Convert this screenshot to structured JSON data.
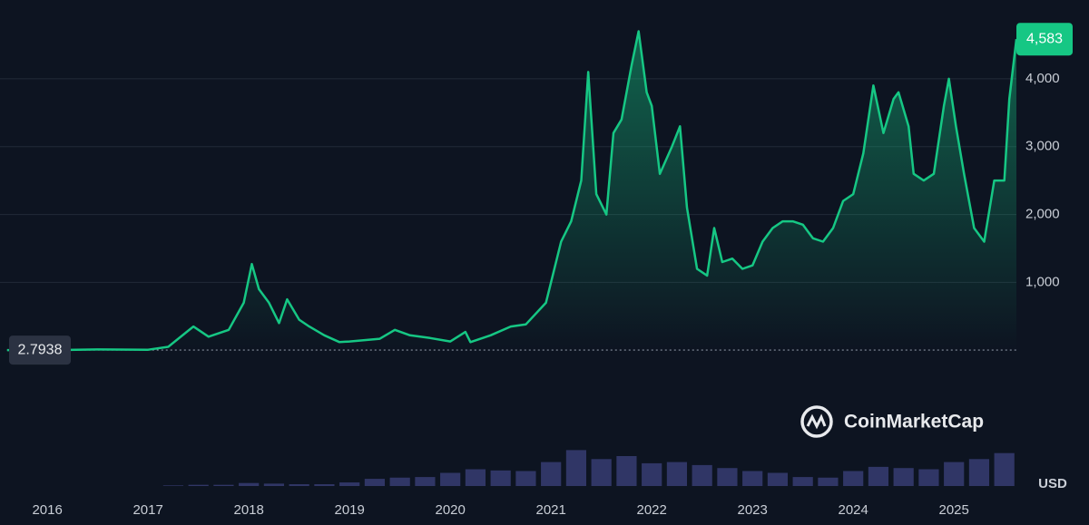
{
  "chart_data": {
    "type": "line",
    "watermark": "CoinMarketCap",
    "currency": "USD",
    "color": "#16c784",
    "x": [
      2015.6,
      2016.0,
      2016.5,
      2017.0,
      2017.2,
      2017.45,
      2017.6,
      2017.8,
      2017.95,
      2018.03,
      2018.1,
      2018.2,
      2018.3,
      2018.38,
      2018.5,
      2018.6,
      2018.75,
      2018.9,
      2019.0,
      2019.3,
      2019.45,
      2019.6,
      2019.8,
      2020.0,
      2020.15,
      2020.2,
      2020.4,
      2020.6,
      2020.75,
      2020.95,
      2021.1,
      2021.2,
      2021.3,
      2021.37,
      2021.45,
      2021.55,
      2021.62,
      2021.7,
      2021.8,
      2021.87,
      2021.95,
      2022.0,
      2022.08,
      2022.2,
      2022.28,
      2022.35,
      2022.45,
      2022.55,
      2022.62,
      2022.7,
      2022.8,
      2022.9,
      2023.0,
      2023.1,
      2023.2,
      2023.3,
      2023.4,
      2023.5,
      2023.6,
      2023.7,
      2023.8,
      2023.9,
      2024.0,
      2024.1,
      2024.2,
      2024.3,
      2024.4,
      2024.45,
      2024.55,
      2024.6,
      2024.7,
      2024.8,
      2024.9,
      2024.95,
      2025.02,
      2025.1,
      2025.2,
      2025.3,
      2025.4,
      2025.5,
      2025.55,
      2025.62
    ],
    "values": [
      2.7938,
      1,
      12,
      8,
      50,
      350,
      200,
      300,
      700,
      1270,
      900,
      700,
      400,
      750,
      450,
      350,
      220,
      120,
      130,
      170,
      300,
      220,
      180,
      130,
      270,
      120,
      220,
      350,
      380,
      700,
      1600,
      1900,
      2500,
      4100,
      2300,
      2000,
      3200,
      3400,
      4200,
      4700,
      3800,
      3600,
      2600,
      3000,
      3300,
      2100,
      1200,
      1100,
      1800,
      1300,
      1350,
      1200,
      1250,
      1600,
      1800,
      1900,
      1900,
      1850,
      1650,
      1600,
      1800,
      2200,
      2300,
      2900,
      3900,
      3200,
      3700,
      3800,
      3300,
      2600,
      2500,
      2600,
      3600,
      4000,
      3300,
      2600,
      1800,
      1600,
      2500,
      2500,
      3700,
      4583
    ],
    "value_labels": [
      "2.7938",
      null,
      null,
      null,
      null,
      null,
      null,
      null,
      null,
      null,
      null,
      null,
      null,
      null,
      null,
      null,
      null,
      null,
      null,
      null,
      null,
      null,
      null,
      null,
      null,
      null,
      null,
      null,
      null,
      null,
      null,
      null,
      null,
      null,
      null,
      null,
      null,
      null,
      null,
      null,
      null,
      null,
      null,
      null,
      null,
      null,
      null,
      null,
      null,
      null,
      null,
      null,
      null,
      null,
      null,
      null,
      null,
      null,
      null,
      null,
      null,
      null,
      null,
      null,
      null,
      null,
      null,
      null,
      null,
      null,
      null,
      null,
      null,
      null,
      null,
      null,
      null,
      null,
      null,
      null,
      null,
      "4,583"
    ],
    "volume": {
      "name": "Volume",
      "color": "#3a3f78",
      "axis": "y2",
      "x": [
        2016.0,
        2016.25,
        2016.5,
        2016.75,
        2017.0,
        2017.25,
        2017.5,
        2017.75,
        2018.0,
        2018.25,
        2018.5,
        2018.75,
        2019.0,
        2019.25,
        2019.5,
        2019.75,
        2020.0,
        2020.25,
        2020.5,
        2020.75,
        2021.0,
        2021.25,
        2021.5,
        2021.75,
        2022.0,
        2022.25,
        2022.5,
        2022.75,
        2023.0,
        2023.25,
        2023.5,
        2023.75,
        2024.0,
        2024.25,
        2024.5,
        2024.75,
        2025.0,
        2025.25,
        2025.5
      ],
      "values": [
        0,
        0,
        0,
        0,
        0,
        1,
        2,
        2,
        5,
        4,
        3,
        3,
        6,
        12,
        14,
        15,
        22,
        28,
        26,
        25,
        40,
        60,
        45,
        50,
        38,
        40,
        35,
        30,
        25,
        22,
        15,
        14,
        25,
        32,
        30,
        28,
        40,
        45,
        55
      ]
    },
    "xlim": [
      2015.53,
      2025.62
    ],
    "ylim": [
      -2000,
      5000
    ],
    "y2lim": [
      0,
      100
    ],
    "xticks": [
      2016,
      2017,
      2018,
      2019,
      2020,
      2021,
      2022,
      2023,
      2024,
      2025
    ],
    "yticks": [
      {
        "value": 1000,
        "label": "1,000"
      },
      {
        "value": 2000,
        "label": "2,000"
      },
      {
        "value": 3000,
        "label": "3,000"
      },
      {
        "value": 4000,
        "label": "4,000"
      }
    ],
    "grid": true
  }
}
